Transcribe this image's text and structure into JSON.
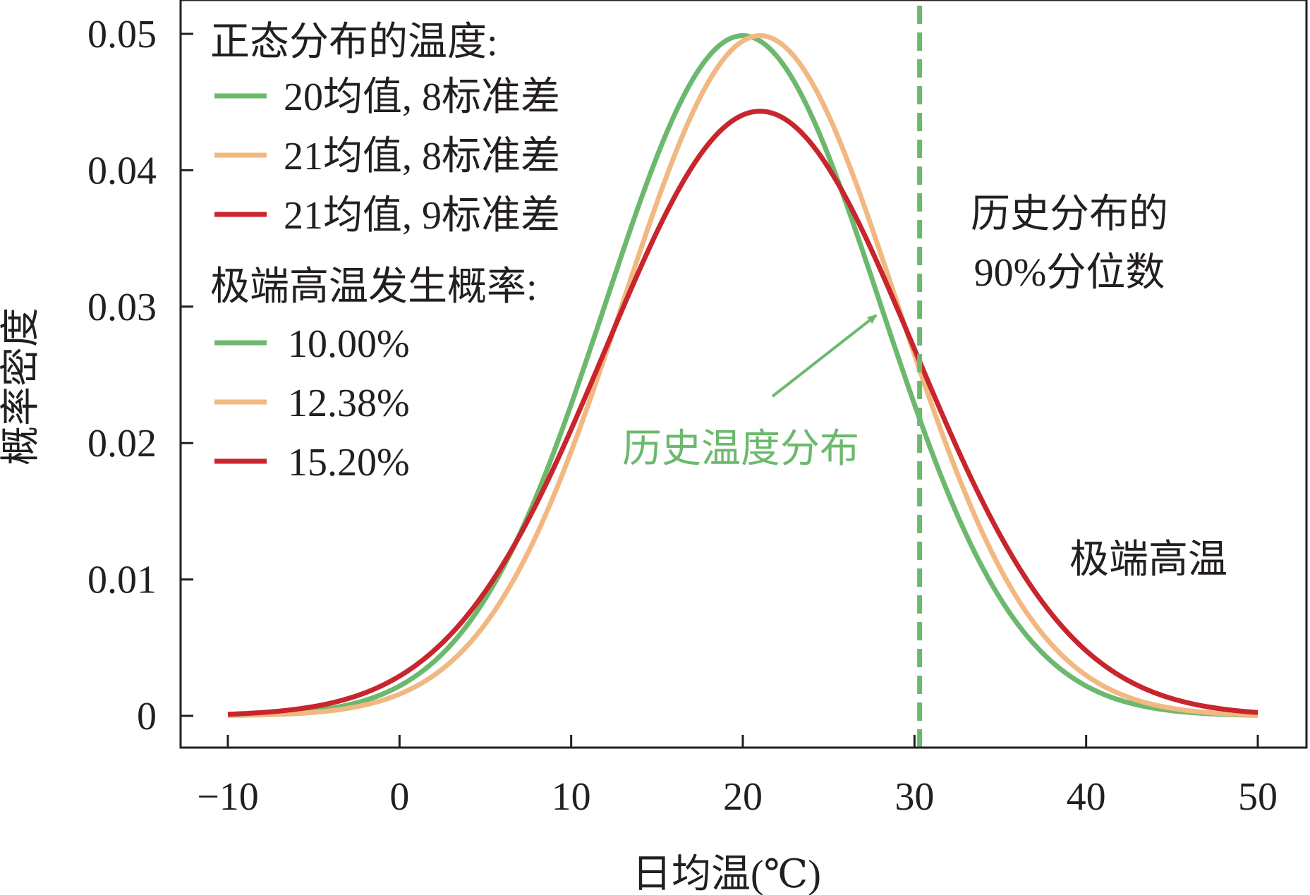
{
  "chart_data": {
    "type": "line",
    "xlabel": "日均温(℃)",
    "ylabel": "概率密度",
    "xlim": [
      -10,
      50
    ],
    "ylim": [
      0,
      0.05
    ],
    "x_ticks": [
      "−10",
      "0",
      "10",
      "20",
      "30",
      "40",
      "50"
    ],
    "x_tick_values": [
      -10,
      0,
      10,
      20,
      30,
      40,
      50
    ],
    "y_ticks": [
      "0",
      "0.01",
      "0.02",
      "0.03",
      "0.04",
      "0.05"
    ],
    "y_tick_values": [
      0,
      0.01,
      0.02,
      0.03,
      0.04,
      0.05
    ],
    "grid": false,
    "legend_placement": "top-left",
    "legend_title_dist": "正态分布的温度:",
    "legend_title_prob": "极端高温发生概率:",
    "series": [
      {
        "name": "20均值, 8标准差",
        "mean": 20,
        "sd": 8,
        "probability": "10.00%",
        "color": "#6cb96e"
      },
      {
        "name": "21均值, 8标准差",
        "mean": 21,
        "sd": 8,
        "probability": "12.38%",
        "color": "#f2b882"
      },
      {
        "name": "21均值, 9标准差",
        "mean": 21,
        "sd": 9,
        "probability": "15.20%",
        "color": "#c8252c"
      }
    ],
    "threshold_line": {
      "x": 30.3,
      "color": "#6cb96e",
      "style": "dashed"
    },
    "annotations": {
      "threshold_label_line1": "历史分布的",
      "threshold_label_line2": "90%分位数",
      "extreme_label": "极端高温",
      "historical_label": "历史温度分布",
      "historical_color": "#6cb96e"
    }
  }
}
